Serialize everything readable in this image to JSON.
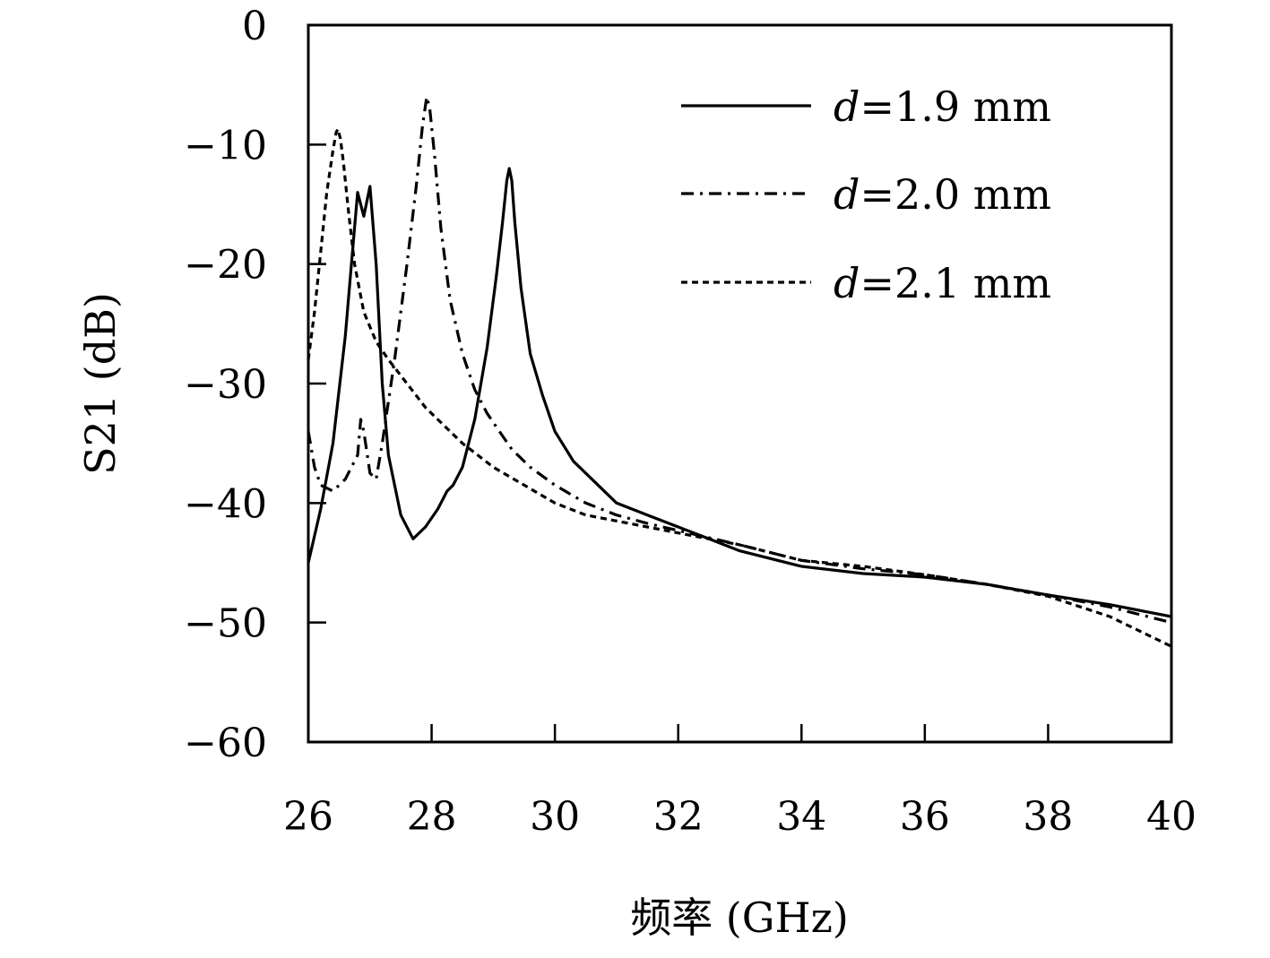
{
  "chart_data": {
    "type": "line",
    "xlabel": "频率 (GHz)",
    "ylabel": "S21 (dB)",
    "xlim": [
      26,
      40
    ],
    "ylim": [
      -60,
      0
    ],
    "xticks": [
      26,
      28,
      30,
      32,
      34,
      36,
      38,
      40
    ],
    "yticks": [
      0,
      -10,
      -20,
      -30,
      -40,
      -50,
      -60
    ],
    "xtick_labels": [
      "26",
      "28",
      "30",
      "32",
      "34",
      "36",
      "38",
      "40"
    ],
    "ytick_labels": [
      "0",
      "−10",
      "−20",
      "−30",
      "−40",
      "−50",
      "−60"
    ],
    "legend_position": "top-right",
    "grid": false,
    "series": [
      {
        "name": "d=1.9 mm",
        "legend_var": "d",
        "legend_rest": "=1.9 mm",
        "dash": "solid",
        "x": [
          26.0,
          26.2,
          26.4,
          26.6,
          26.7,
          26.8,
          26.9,
          27.0,
          27.1,
          27.2,
          27.3,
          27.5,
          27.7,
          27.9,
          28.1,
          28.25,
          28.35,
          28.5,
          28.7,
          28.9,
          29.05,
          29.15,
          29.22,
          29.26,
          29.3,
          29.35,
          29.45,
          29.6,
          29.8,
          30.0,
          30.3,
          30.6,
          31.0,
          31.5,
          32.0,
          32.5,
          33.0,
          34.0,
          35.0,
          36.0,
          37.0,
          38.0,
          39.0,
          40.0
        ],
        "y": [
          -45.0,
          -40.5,
          -35.0,
          -26.0,
          -20.0,
          -14.0,
          -16.0,
          -13.5,
          -20.0,
          -30.0,
          -36.0,
          -41.0,
          -43.0,
          -42.0,
          -40.5,
          -39.0,
          -38.5,
          -37.0,
          -33.0,
          -27.0,
          -21.0,
          -16.5,
          -13.0,
          -12.0,
          -13.0,
          -16.5,
          -22.0,
          -27.5,
          -31.0,
          -34.0,
          -36.5,
          -38.0,
          -40.0,
          -41.0,
          -42.0,
          -43.0,
          -44.0,
          -45.3,
          -45.9,
          -46.2,
          -46.8,
          -47.7,
          -48.5,
          -49.5
        ]
      },
      {
        "name": "d=2.0 mm",
        "legend_var": "d",
        "legend_rest": "=2.0 mm",
        "dash": "dashdot",
        "x": [
          26.0,
          26.1,
          26.2,
          26.4,
          26.6,
          26.7,
          26.8,
          26.85,
          26.9,
          27.0,
          27.1,
          27.2,
          27.4,
          27.6,
          27.75,
          27.85,
          27.92,
          27.97,
          28.05,
          28.15,
          28.3,
          28.5,
          28.7,
          28.9,
          29.1,
          29.3,
          29.6,
          30.0,
          30.5,
          31.0,
          31.5,
          32.0,
          33.0,
          34.0,
          35.0,
          36.0,
          37.0,
          38.0,
          39.0,
          40.0
        ],
        "y": [
          -34.0,
          -37.0,
          -38.5,
          -39.0,
          -38.0,
          -37.0,
          -36.0,
          -33.0,
          -34.0,
          -37.5,
          -38.0,
          -35.0,
          -28.0,
          -20.0,
          -13.5,
          -8.5,
          -6.0,
          -7.0,
          -11.0,
          -17.0,
          -23.0,
          -27.5,
          -30.5,
          -32.5,
          -34.0,
          -35.5,
          -37.0,
          -38.5,
          -40.0,
          -41.0,
          -41.7,
          -42.3,
          -43.5,
          -44.8,
          -45.5,
          -46.0,
          -46.8,
          -47.7,
          -48.7,
          -50.0
        ]
      },
      {
        "name": "d=2.1 mm",
        "legend_var": "d",
        "legend_rest": "=2.1 mm",
        "dash": "dashed",
        "x": [
          26.0,
          26.1,
          26.2,
          26.3,
          26.4,
          26.45,
          26.48,
          26.52,
          26.57,
          26.65,
          26.75,
          26.9,
          27.1,
          27.3,
          27.6,
          27.9,
          28.2,
          28.5,
          29.0,
          29.5,
          30.0,
          30.5,
          31.0,
          31.5,
          32.0,
          33.0,
          34.0,
          35.0,
          36.0,
          37.0,
          38.0,
          39.0,
          40.0
        ],
        "y": [
          -28.0,
          -24.0,
          -19.0,
          -14.0,
          -10.5,
          -9.0,
          -8.7,
          -9.5,
          -11.5,
          -15.5,
          -20.0,
          -24.0,
          -26.5,
          -28.0,
          -30.0,
          -32.0,
          -33.5,
          -35.0,
          -37.0,
          -38.5,
          -40.0,
          -41.0,
          -41.5,
          -42.0,
          -42.5,
          -43.5,
          -44.8,
          -45.3,
          -46.0,
          -46.8,
          -47.8,
          -49.5,
          -52.0
        ]
      }
    ]
  }
}
